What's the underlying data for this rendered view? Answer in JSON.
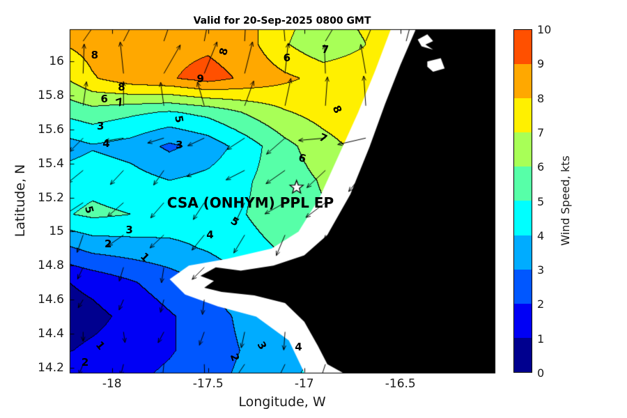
{
  "title": "Valid for 20-Sep-2025 0800 GMT",
  "axes": {
    "x_label": "Longitude, W",
    "y_label": "Latitude, N",
    "x_range": [
      -18.22,
      -16.01
    ],
    "y_range": [
      14.17,
      16.19
    ],
    "x_ticks": [
      {
        "value": -18,
        "label": "-18"
      },
      {
        "value": -17.5,
        "label": "-17.5"
      },
      {
        "value": -17,
        "label": "-17"
      },
      {
        "value": -16.5,
        "label": "-16.5"
      }
    ],
    "y_ticks": [
      {
        "value": 16,
        "label": "16"
      },
      {
        "value": 15.8,
        "label": "15.8"
      },
      {
        "value": 15.6,
        "label": "15.6"
      },
      {
        "value": 15.4,
        "label": "15.4"
      },
      {
        "value": 15.2,
        "label": "15.2"
      },
      {
        "value": 15,
        "label": "15"
      },
      {
        "value": 14.8,
        "label": "14.8"
      },
      {
        "value": 14.6,
        "label": "14.6"
      },
      {
        "value": 14.4,
        "label": "14.4"
      },
      {
        "value": 14.2,
        "label": "14.2"
      }
    ]
  },
  "colorbar": {
    "label": "Wind Speed, kts",
    "min": 0,
    "max": 10,
    "tick_labels": [
      "0",
      "1",
      "2",
      "3",
      "4",
      "5",
      "6",
      "7",
      "8",
      "9",
      "10"
    ],
    "colors": [
      "#00008F",
      "#0000F5",
      "#0057FF",
      "#00ACFF",
      "#00FFFF",
      "#57FFA8",
      "#A8FF57",
      "#FFF000",
      "#FFA800",
      "#FF5000"
    ]
  },
  "site": {
    "label": "CSA (ONHYM) PPL EP",
    "marker": "star",
    "lon": -17.04,
    "lat": 15.26,
    "label_lon": -17.28,
    "label_lat": 15.17
  },
  "chart_data": {
    "type": "heatmap",
    "style": "filled-contour wind-speed map with quiver wind vectors, black land mask and white no-data coastal strip",
    "units": "kts",
    "levels": [
      0,
      1,
      2,
      3,
      4,
      5,
      6,
      7,
      8,
      9,
      10
    ],
    "grid": {
      "lons": [
        -18.3,
        -18.1,
        -17.9,
        -17.7,
        -17.5,
        -17.3,
        -17.1,
        -16.9,
        -16.7,
        -16.5,
        -16.3,
        -16.1,
        -15.9
      ],
      "lats": [
        16.3,
        16.1,
        15.9,
        15.7,
        15.5,
        15.3,
        15.1,
        14.9,
        14.7,
        14.5,
        14.3,
        14.1
      ],
      "values": [
        [
          8.2,
          8.3,
          8.4,
          8.6,
          8.6,
          8.3,
          7.4,
          6.6,
          7.3,
          7.9,
          8.2,
          8.3,
          8.3
        ],
        [
          7.9,
          8.4,
          8.5,
          8.7,
          8.8,
          8.4,
          7.1,
          6.2,
          6.9,
          7.8,
          8.1,
          8.2,
          8.2
        ],
        [
          6.6,
          7.9,
          8.6,
          8.9,
          9.4,
          8.8,
          8.2,
          7.7,
          7.8,
          8.0,
          8.1,
          8.1,
          8.1
        ],
        [
          5.1,
          5.6,
          5.2,
          4.9,
          5.3,
          6.1,
          6.9,
          7.4,
          7.8,
          8.0,
          8.1,
          8.1,
          8.1
        ],
        [
          3.4,
          3.9,
          3.6,
          2.8,
          3.4,
          4.5,
          5.7,
          6.6,
          7.3,
          7.8,
          7.9,
          7.9,
          7.9
        ],
        [
          4.4,
          4.7,
          4.4,
          4.0,
          4.3,
          4.9,
          5.5,
          6.1,
          6.7,
          7.3,
          7.6,
          7.7,
          7.7
        ],
        [
          4.8,
          5.2,
          5.0,
          4.7,
          4.6,
          5.0,
          5.5,
          5.9,
          6.3,
          6.9,
          7.2,
          7.3,
          7.3
        ],
        [
          2.6,
          3.3,
          3.5,
          3.7,
          4.1,
          4.7,
          5.1,
          5.5,
          5.9,
          6.3,
          6.6,
          6.7,
          6.7
        ],
        [
          0.8,
          1.3,
          1.9,
          2.5,
          3.1,
          3.9,
          4.5,
          4.9,
          5.3,
          5.7,
          5.9,
          6.0,
          6.0
        ],
        [
          0.4,
          0.7,
          1.3,
          1.9,
          2.5,
          3.3,
          3.9,
          4.3,
          4.7,
          5.1,
          5.3,
          5.4,
          5.4
        ],
        [
          0.8,
          1.2,
          1.5,
          1.9,
          2.5,
          3.1,
          3.7,
          4.1,
          4.5,
          4.9,
          5.0,
          5.0,
          5.0
        ],
        [
          1.9,
          2.3,
          1.9,
          2.3,
          2.7,
          3.3,
          3.9,
          4.3,
          4.6,
          4.8,
          4.8,
          4.8,
          4.8
        ]
      ]
    },
    "quiver": {
      "lons": [
        -18.15,
        -17.94,
        -17.73,
        -17.52,
        -17.31,
        -17.1,
        -16.89,
        -16.68,
        -16.47,
        -16.26,
        -16.05
      ],
      "lats": [
        16.12,
        15.93,
        15.74,
        15.55,
        15.36,
        15.17,
        14.98,
        14.79,
        14.6,
        14.41,
        14.22
      ],
      "angles_by_row": [
        75,
        80,
        90,
        205,
        215,
        225,
        235,
        245,
        255,
        258,
        252
      ]
    },
    "contour_labels": [
      {
        "lon": -18.09,
        "lat": 16.04,
        "text": "8",
        "rot": 0
      },
      {
        "lon": -17.54,
        "lat": 15.9,
        "text": "9",
        "rot": 0
      },
      {
        "lon": -17.42,
        "lat": 16.06,
        "text": "8",
        "rot": -75
      },
      {
        "lon": -17.09,
        "lat": 16.02,
        "text": "6",
        "rot": 0
      },
      {
        "lon": -16.89,
        "lat": 16.07,
        "text": "7",
        "rot": 0
      },
      {
        "lon": -17.95,
        "lat": 15.85,
        "text": "8",
        "rot": 0
      },
      {
        "lon": -18.04,
        "lat": 15.78,
        "text": "6",
        "rot": 0
      },
      {
        "lon": -17.96,
        "lat": 15.76,
        "text": "7",
        "rot": -20
      },
      {
        "lon": -17.65,
        "lat": 15.66,
        "text": "5",
        "rot": 80
      },
      {
        "lon": -18.06,
        "lat": 15.62,
        "text": "3",
        "rot": 0
      },
      {
        "lon": -18.03,
        "lat": 15.52,
        "text": "4",
        "rot": 0
      },
      {
        "lon": -17.65,
        "lat": 15.51,
        "text": "3",
        "rot": 0
      },
      {
        "lon": -17.01,
        "lat": 15.43,
        "text": "6",
        "rot": 15
      },
      {
        "lon": -16.9,
        "lat": 15.55,
        "text": "7",
        "rot": 25
      },
      {
        "lon": -16.83,
        "lat": 15.72,
        "text": "8",
        "rot": 65
      },
      {
        "lon": -18.12,
        "lat": 15.13,
        "text": "5",
        "rot": 75
      },
      {
        "lon": -18.02,
        "lat": 14.93,
        "text": "2",
        "rot": 0
      },
      {
        "lon": -17.91,
        "lat": 15.01,
        "text": "3",
        "rot": 0
      },
      {
        "lon": -17.83,
        "lat": 14.85,
        "text": "1",
        "rot": 45
      },
      {
        "lon": -17.49,
        "lat": 14.98,
        "text": "4",
        "rot": 0
      },
      {
        "lon": -17.36,
        "lat": 15.06,
        "text": "5",
        "rot": 30
      },
      {
        "lon": -18.14,
        "lat": 14.23,
        "text": "2",
        "rot": 0
      },
      {
        "lon": -18.06,
        "lat": 14.33,
        "text": "1",
        "rot": 50
      },
      {
        "lon": -17.36,
        "lat": 14.26,
        "text": "2",
        "rot": 70
      },
      {
        "lon": -17.22,
        "lat": 14.33,
        "text": "3",
        "rot": 60
      },
      {
        "lon": -17.03,
        "lat": 14.32,
        "text": "4",
        "rot": 0
      }
    ],
    "data_edge": [
      [
        -16.55,
        16.19
      ],
      [
        -16.63,
        15.95
      ],
      [
        -16.72,
        15.7
      ],
      [
        -16.82,
        15.45
      ],
      [
        -16.92,
        15.2
      ],
      [
        -17.03,
        15.0
      ],
      [
        -17.17,
        14.9
      ],
      [
        -17.4,
        14.84
      ],
      [
        -17.6,
        14.8
      ],
      [
        -17.7,
        14.72
      ],
      [
        -17.62,
        14.63
      ],
      [
        -17.45,
        14.56
      ],
      [
        -17.25,
        14.5
      ],
      [
        -17.08,
        14.36
      ],
      [
        -17.0,
        14.17
      ]
    ],
    "coastline": [
      [
        -16.42,
        16.19
      ],
      [
        -16.5,
        15.98
      ],
      [
        -16.58,
        15.75
      ],
      [
        -16.66,
        15.5
      ],
      [
        -16.76,
        15.22
      ],
      [
        -16.88,
        14.98
      ],
      [
        -17.0,
        14.86
      ],
      [
        -17.16,
        14.8
      ],
      [
        -17.33,
        14.77
      ],
      [
        -17.46,
        14.79
      ],
      [
        -17.54,
        14.74
      ],
      [
        -17.47,
        14.71
      ],
      [
        -17.52,
        14.67
      ],
      [
        -17.43,
        14.645
      ],
      [
        -17.26,
        14.625
      ],
      [
        -17.1,
        14.58
      ],
      [
        -17.0,
        14.47
      ],
      [
        -16.93,
        14.33
      ],
      [
        -16.88,
        14.22
      ],
      [
        -16.8,
        14.17
      ]
    ],
    "lakes": [
      [
        [
          -16.41,
          16.13
        ],
        [
          -16.36,
          16.16
        ],
        [
          -16.33,
          16.12
        ],
        [
          -16.37,
          16.1
        ],
        [
          -16.33,
          16.07
        ],
        [
          -16.39,
          16.09
        ]
      ],
      [
        [
          -16.36,
          16.0
        ],
        [
          -16.29,
          16.02
        ],
        [
          -16.27,
          15.96
        ],
        [
          -16.33,
          15.94
        ],
        [
          -16.36,
          15.97
        ]
      ]
    ],
    "land_color": "#000000",
    "nodata_color": "#ffffff"
  }
}
